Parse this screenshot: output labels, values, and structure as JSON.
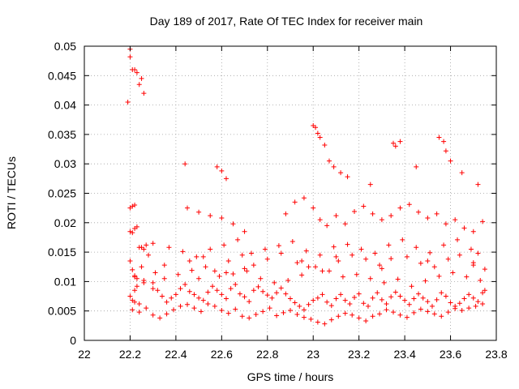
{
  "chart_data": {
    "type": "scatter",
    "title": "Day 189 of 2017, Rate Of TEC Index for receiver main",
    "xlabel": "GPS time / hours",
    "ylabel": "ROTI / TECUs",
    "xlim": [
      22,
      23.8
    ],
    "ylim": [
      0,
      0.05
    ],
    "grid": true,
    "marker": "+",
    "marker_color": "#ff0000",
    "x_ticks": [
      22,
      22.2,
      22.4,
      22.6,
      22.8,
      23,
      23.2,
      23.4,
      23.6,
      23.8
    ],
    "x_tick_labels": [
      "22",
      "22.2",
      "22.4",
      "22.6",
      "22.8",
      "23",
      "23.2",
      "23.4",
      "23.6",
      "23.8"
    ],
    "y_ticks": [
      0,
      0.005,
      0.01,
      0.015,
      0.02,
      0.025,
      0.03,
      0.035,
      0.04,
      0.045,
      0.05
    ],
    "y_tick_labels": [
      "0",
      "0.005",
      "0.01",
      "0.015",
      "0.02",
      "0.025",
      "0.03",
      "0.035",
      "0.04",
      "0.045",
      "0.05"
    ],
    "series": [
      {
        "name": "ROTI",
        "x": [
          22.19,
          22.2,
          22.2,
          22.21,
          22.22,
          22.23,
          22.24,
          22.25,
          22.26,
          22.2,
          22.21,
          22.22,
          22.2,
          22.21,
          22.22,
          22.23,
          22.24,
          22.2,
          22.21,
          22.22,
          22.23,
          22.25,
          22.26,
          22.27,
          22.28,
          22.3,
          22.32,
          22.34,
          22.36,
          22.38,
          22.4,
          22.42,
          22.44,
          22.46,
          22.48,
          22.5,
          22.52,
          22.54,
          22.56,
          22.58,
          22.6,
          22.62,
          22.64,
          22.66,
          22.68,
          22.7,
          22.72,
          22.74,
          22.76,
          22.78,
          22.8,
          22.82,
          22.84,
          22.86,
          22.88,
          22.9,
          22.92,
          22.94,
          22.96,
          22.98,
          23,
          23.02,
          23.04,
          23.06,
          23.08,
          23.1,
          23.12,
          23.14,
          23.16,
          23.18,
          23.2,
          23.22,
          23.24,
          23.26,
          23.28,
          23.3,
          23.32,
          23.34,
          23.36,
          23.38,
          23.4,
          23.42,
          23.44,
          23.46,
          23.48,
          23.5,
          23.52,
          23.54,
          23.56,
          23.58,
          23.6,
          23.62,
          23.64,
          23.66,
          23.68,
          23.7,
          23.72,
          23.74,
          23.75,
          22.21,
          22.24,
          22.27,
          22.3,
          22.33,
          22.36,
          22.39,
          22.42,
          22.45,
          22.48,
          22.51,
          22.54,
          22.57,
          22.6,
          22.63,
          22.66,
          22.69,
          22.72,
          22.75,
          22.78,
          22.81,
          22.84,
          22.87,
          22.9,
          22.93,
          22.96,
          22.99,
          23.02,
          23.05,
          23.08,
          23.11,
          23.14,
          23.17,
          23.2,
          23.23,
          23.26,
          23.29,
          23.32,
          23.35,
          23.38,
          23.41,
          23.44,
          23.47,
          23.5,
          23.53,
          23.56,
          23.59,
          23.62,
          23.65,
          23.68,
          23.71,
          23.74,
          22.22,
          22.26,
          22.31,
          22.35,
          22.41,
          22.47,
          22.53,
          22.59,
          22.65,
          22.71,
          22.77,
          22.83,
          22.89,
          22.95,
          23.01,
          23.07,
          23.13,
          23.19,
          23.25,
          23.31,
          23.37,
          23.43,
          23.49,
          23.55,
          23.61,
          23.67,
          23.73,
          22.25,
          22.3,
          22.37,
          22.43,
          22.49,
          22.55,
          22.61,
          22.67,
          22.73,
          22.79,
          22.85,
          22.91,
          22.97,
          23.03,
          23.09,
          23.15,
          23.21,
          23.27,
          23.33,
          23.39,
          23.45,
          23.51,
          23.57,
          23.63,
          23.69,
          23.72,
          22.45,
          22.5,
          22.55,
          22.6,
          22.65,
          22.7,
          22.88,
          22.92,
          22.96,
          23,
          23.03,
          23.06,
          23.1,
          23.14,
          23.18,
          23.22,
          23.26,
          23.3,
          23.34,
          23.38,
          23.42,
          23.46,
          23.5,
          23.54,
          23.58,
          23.62,
          23.66,
          23.7,
          23.74,
          22.44,
          22.58,
          22.6,
          22.62,
          23.0,
          23.01,
          23.02,
          23.03,
          23.05,
          23.07,
          23.09,
          23.12,
          23.15,
          23.25,
          23.35,
          23.36,
          23.38,
          23.45,
          23.55,
          23.57,
          23.58,
          23.6,
          23.65,
          23.72,
          22.2,
          22.21,
          22.22,
          22.23,
          22.24,
          22.26,
          22.5,
          22.62,
          22.7,
          22.95,
          23.1,
          23.3,
          23.5,
          23.7,
          22.22,
          22.3,
          22.35,
          22.46,
          22.52,
          22.57,
          22.63,
          22.69,
          22.74,
          22.8,
          22.86,
          22.93,
          22.98,
          23.04,
          23.11,
          23.17,
          23.23,
          23.29,
          23.34,
          23.41,
          23.47,
          23.53,
          23.59,
          23.64,
          23.7,
          23.75
        ],
        "y": [
          0.0405,
          0.0495,
          0.0482,
          0.046,
          0.046,
          0.0455,
          0.0435,
          0.0445,
          0.042,
          0.0225,
          0.0228,
          0.023,
          0.0185,
          0.0183,
          0.019,
          0.0193,
          0.0158,
          0.0135,
          0.012,
          0.011,
          0.0105,
          0.0125,
          0.0155,
          0.0162,
          0.0145,
          0.0098,
          0.0085,
          0.0075,
          0.0065,
          0.0072,
          0.0078,
          0.0088,
          0.0095,
          0.0083,
          0.0078,
          0.0072,
          0.0068,
          0.0082,
          0.0092,
          0.0085,
          0.0078,
          0.0071,
          0.0088,
          0.0095,
          0.0079,
          0.0074,
          0.0066,
          0.0085,
          0.0091,
          0.0083,
          0.0077,
          0.0072,
          0.0081,
          0.0089,
          0.0079,
          0.0071,
          0.0064,
          0.0058,
          0.0052,
          0.0061,
          0.0068,
          0.0072,
          0.0078,
          0.0065,
          0.0059,
          0.0071,
          0.0078,
          0.0068,
          0.0062,
          0.0073,
          0.0079,
          0.0063,
          0.0058,
          0.0072,
          0.0081,
          0.0069,
          0.0062,
          0.0074,
          0.0082,
          0.0075,
          0.0068,
          0.0061,
          0.0071,
          0.0079,
          0.0072,
          0.0066,
          0.0058,
          0.0069,
          0.0081,
          0.0075,
          0.0064,
          0.0058,
          0.0063,
          0.0071,
          0.0078,
          0.0072,
          0.0066,
          0.0081,
          0.0085,
          0.0052,
          0.0048,
          0.0055,
          0.0043,
          0.0038,
          0.0045,
          0.0052,
          0.0058,
          0.0061,
          0.0055,
          0.0049,
          0.0062,
          0.0058,
          0.0051,
          0.0046,
          0.0053,
          0.0041,
          0.0038,
          0.0044,
          0.0049,
          0.0055,
          0.0042,
          0.0047,
          0.0051,
          0.0044,
          0.0039,
          0.0036,
          0.0031,
          0.0028,
          0.0035,
          0.0041,
          0.0046,
          0.0043,
          0.0038,
          0.0033,
          0.0041,
          0.0045,
          0.0052,
          0.0048,
          0.0043,
          0.0039,
          0.0047,
          0.0053,
          0.0049,
          0.0045,
          0.0041,
          0.0048,
          0.0054,
          0.0051,
          0.0055,
          0.0058,
          0.0062,
          0.0108,
          0.0102,
          0.0115,
          0.0128,
          0.0112,
          0.0119,
          0.0125,
          0.0109,
          0.0113,
          0.0118,
          0.0105,
          0.0098,
          0.0102,
          0.0111,
          0.0125,
          0.0118,
          0.0108,
          0.0112,
          0.0105,
          0.0098,
          0.0104,
          0.0092,
          0.0101,
          0.0109,
          0.0115,
          0.0108,
          0.0102,
          0.0158,
          0.0165,
          0.0158,
          0.0151,
          0.0142,
          0.0155,
          0.0162,
          0.0171,
          0.0148,
          0.0155,
          0.0161,
          0.0168,
          0.0152,
          0.0145,
          0.0159,
          0.0163,
          0.0155,
          0.0148,
          0.0162,
          0.0171,
          0.0158,
          0.0149,
          0.0162,
          0.0171,
          0.0155,
          0.0148,
          0.0225,
          0.0218,
          0.0212,
          0.0208,
          0.0198,
          0.0185,
          0.0215,
          0.0235,
          0.0242,
          0.0225,
          0.0205,
          0.0195,
          0.0212,
          0.0198,
          0.0219,
          0.0228,
          0.0215,
          0.0205,
          0.0212,
          0.0225,
          0.0231,
          0.0218,
          0.0208,
          0.0215,
          0.0198,
          0.0205,
          0.0191,
          0.0185,
          0.0202,
          0.03,
          0.0295,
          0.0288,
          0.0275,
          0.0365,
          0.0362,
          0.0352,
          0.0345,
          0.0332,
          0.0305,
          0.0295,
          0.0285,
          0.0278,
          0.0265,
          0.0335,
          0.033,
          0.0338,
          0.0295,
          0.0345,
          0.0338,
          0.0322,
          0.0305,
          0.0285,
          0.0265,
          0.0075,
          0.0068,
          0.0085,
          0.0092,
          0.0062,
          0.0098,
          0.0105,
          0.0115,
          0.0122,
          0.0135,
          0.0142,
          0.0122,
          0.0135,
          0.0128,
          0.0065,
          0.0088,
          0.0105,
          0.0135,
          0.0142,
          0.0118,
          0.0135,
          0.0145,
          0.0128,
          0.0138,
          0.0148,
          0.0132,
          0.0125,
          0.0118,
          0.0135,
          0.0145,
          0.0138,
          0.0128,
          0.0139,
          0.0142,
          0.0131,
          0.0125,
          0.0138,
          0.0145,
          0.0132,
          0.0121
        ]
      }
    ]
  }
}
